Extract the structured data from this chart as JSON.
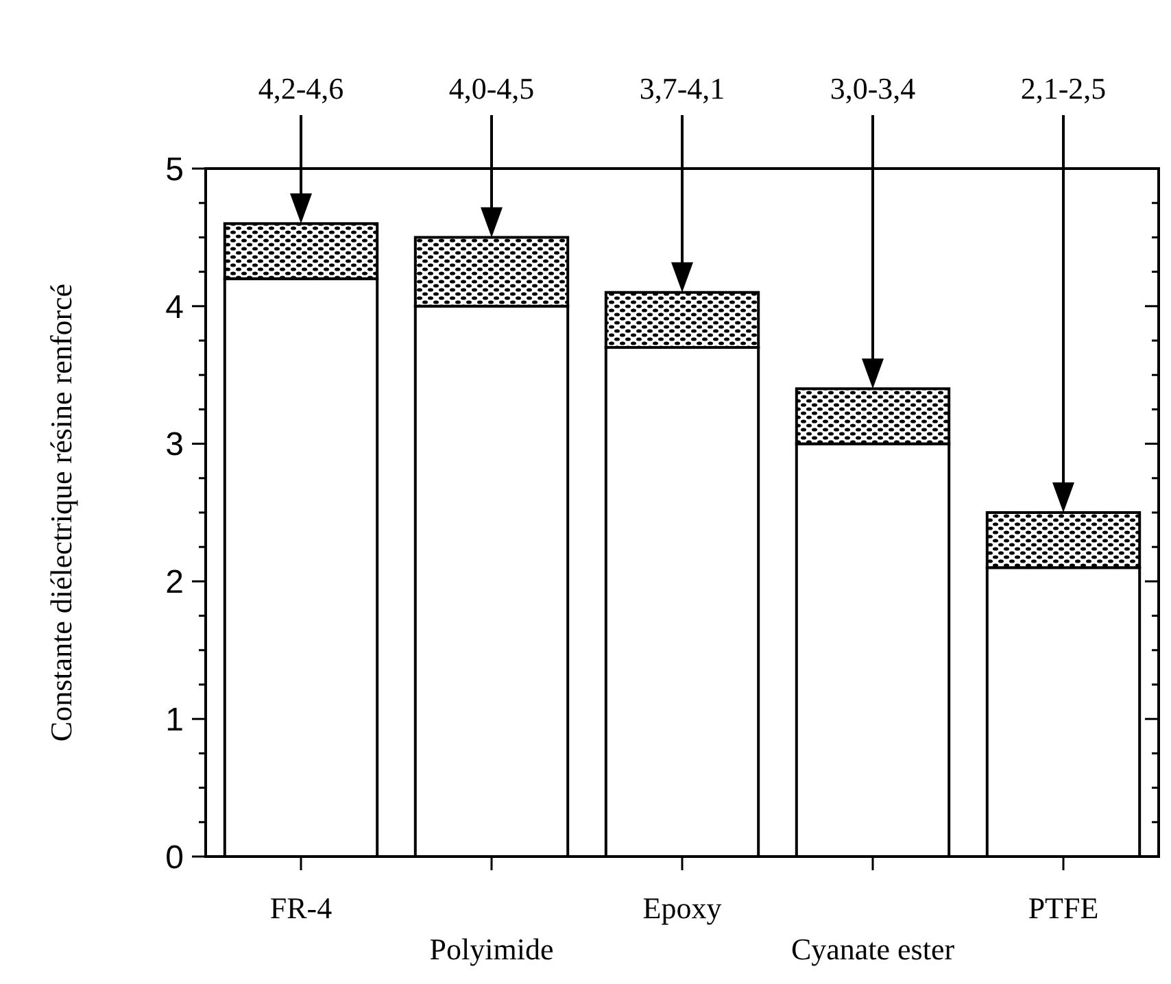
{
  "chart_data": {
    "type": "bar",
    "ylabel": "Constante diélectrique résine renforcé",
    "categories": [
      "FR-4",
      "Polyimide",
      "Epoxy",
      "Cyanate ester",
      "PTFE"
    ],
    "stacked": true,
    "series": [
      {
        "color": "#ffffff",
        "values": [
          4.2,
          4.0,
          3.7,
          3.0,
          2.1
        ]
      },
      {
        "color": "#000000",
        "values": [
          0.4,
          0.5,
          0.4,
          0.4,
          0.4
        ]
      }
    ],
    "ylim": [
      0,
      5
    ],
    "yticks": [
      0,
      {
        "value": 0.25,
        "label": null
      },
      {
        "value": 0.5,
        "label": null
      },
      {
        "value": 0.75,
        "label": null
      },
      1,
      {
        "value": 1.25,
        "label": null
      },
      {
        "value": 1.5,
        "label": null
      },
      {
        "value": 1.75,
        "label": null
      },
      2,
      {
        "value": 2.25,
        "label": null
      },
      {
        "value": 2.5,
        "label": null
      },
      {
        "value": 2.75,
        "label": null
      },
      3,
      {
        "value": 3.25,
        "label": null
      },
      {
        "value": 3.5,
        "label": null
      },
      {
        "value": 3.75,
        "label": null
      },
      4,
      {
        "value": 4.25,
        "label": null
      },
      {
        "value": 4.5,
        "label": null
      },
      {
        "value": 4.75,
        "label": null
      },
      5
    ],
    "annotations": [
      "4,2-4,6",
      "4,0-4,5",
      "3,7-4,1",
      "3,0-3,4",
      "2,1-2,5"
    ]
  }
}
